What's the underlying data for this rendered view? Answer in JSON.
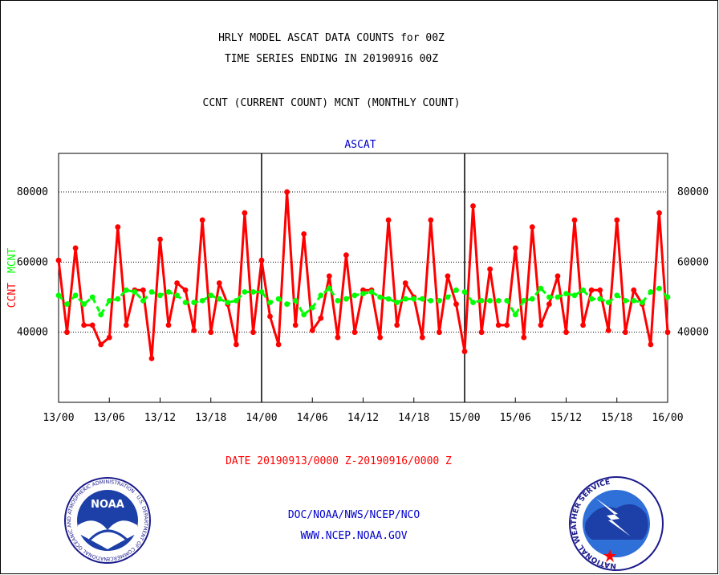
{
  "title_line1": "HRLY MODEL ASCAT DATA COUNTS for 00Z",
  "title_line2": "TIME SERIES ENDING IN 20190916 00Z",
  "subtitle": "CCNT (CURRENT COUNT) MCNT (MONTHLY COUNT)",
  "panel_label": "ASCAT",
  "ylabel_current": "CCNT",
  "ylabel_monthly": "MCNT",
  "date_range": "DATE 20190913/0000 Z-20190916/0000 Z",
  "footer_line1": "DOC/NOAA/NWS/NCEP/NCO",
  "footer_line2": "WWW.NCEP.NOAA.GOV",
  "noaa_logo_text": "NOAA",
  "noaa_logo_ring": "NATIONAL OCEANIC AND ATMOSPHERIC ADMINISTRATION · U.S. DEPARTMENT OF COMMERCE",
  "nws_logo_ring": "NATIONAL WEATHER SERVICE",
  "colors": {
    "ccnt": "#ff0000",
    "mcnt": "#00ff00",
    "title": "#000000",
    "footer": "#0000cc",
    "axis": "#000000"
  },
  "chart_data": {
    "type": "line",
    "x_unit": "hours since 13/00",
    "xlim": [
      0,
      72
    ],
    "ylim": [
      20000,
      91000
    ],
    "yticks": [
      40000,
      60000,
      80000
    ],
    "ytick_labels": [
      "40000",
      "60000",
      "80000"
    ],
    "xticks": [
      0,
      6,
      12,
      18,
      24,
      30,
      36,
      42,
      48,
      54,
      60,
      66,
      72
    ],
    "xtick_labels": [
      "13/00",
      "13/06",
      "13/12",
      "13/18",
      "14/00",
      "14/06",
      "14/12",
      "14/18",
      "15/00",
      "15/06",
      "15/12",
      "15/18",
      "16/00"
    ],
    "day_dividers": [
      24,
      48
    ],
    "grid": "horizontal-dotted",
    "series": [
      {
        "name": "CCNT",
        "color": "#ff0000",
        "style": "solid",
        "values": [
          60500,
          40000,
          64000,
          42000,
          42000,
          36500,
          38500,
          70000,
          42000,
          52000,
          52000,
          32500,
          66500,
          42000,
          54000,
          52000,
          40500,
          72000,
          40000,
          54000,
          48000,
          36500,
          74000,
          40000,
          60500,
          44500,
          36500,
          80000,
          42000,
          68000,
          40500,
          44000,
          56000,
          38500,
          62000,
          40000,
          52000,
          52000,
          38500,
          72000,
          42000,
          54000,
          50000,
          38500,
          72000,
          40000,
          56000,
          48000,
          34500,
          76000,
          40000,
          58000,
          42000,
          42000,
          64000,
          38500,
          70000,
          42000,
          48000,
          56000,
          40000,
          72000,
          42000,
          52000,
          52000,
          40500,
          72000,
          40000,
          52000,
          48000,
          36500,
          74000,
          40000
        ]
      },
      {
        "name": "MCNT",
        "color": "#00ff00",
        "style": "dashed",
        "values": [
          50500,
          48000,
          50500,
          48000,
          50000,
          45000,
          49000,
          49500,
          52000,
          51500,
          49000,
          51500,
          50500,
          51500,
          50500,
          48500,
          48500,
          49000,
          50500,
          49500,
          48500,
          49000,
          51500,
          51500,
          51500,
          48500,
          49500,
          48000,
          49000,
          45000,
          47000,
          50500,
          52500,
          49000,
          49500,
          50500,
          51000,
          51500,
          50000,
          49500,
          48500,
          49500,
          49500,
          49500,
          49000,
          49000,
          50000,
          52000,
          51500,
          48500,
          49000,
          49000,
          49000,
          49000,
          45000,
          49000,
          49500,
          52500,
          50000,
          50000,
          51000,
          50500,
          52000,
          49500,
          49500,
          48500,
          50500,
          49000,
          49000,
          48500,
          51500,
          52500,
          50000
        ]
      }
    ]
  }
}
